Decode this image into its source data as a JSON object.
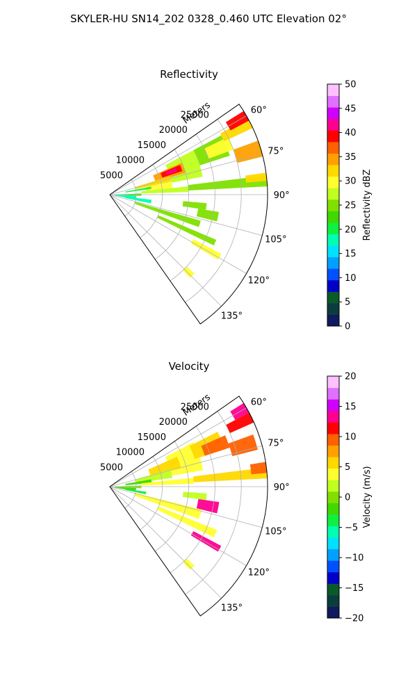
{
  "figure": {
    "title": "SKYLER-HU  SN14_202  0328_0.460 UTC Elevation 02°"
  },
  "chart_data": [
    {
      "type": "heatmap",
      "projection": "polar-sector",
      "title": "Reflectivity",
      "radial_label": "Meters",
      "radial_ticks": [
        "5000",
        "10000",
        "15000",
        "20000",
        "25000"
      ],
      "radial_tick_values": [
        5000,
        10000,
        15000,
        20000,
        25000
      ],
      "rmax": 30000,
      "angle_range": [
        55,
        145
      ],
      "angle_ticks": [
        "60°",
        "75°",
        "90°",
        "105°",
        "120°",
        "135°"
      ],
      "angle_tick_values": [
        60,
        75,
        90,
        105,
        120,
        135
      ],
      "grid": true,
      "colorbar": {
        "label": "Reflectivity dBZ",
        "range": [
          0,
          50
        ],
        "ticks": [
          "0",
          "5",
          "10",
          "15",
          "20",
          "25",
          "30",
          "35",
          "40",
          "45",
          "50"
        ],
        "tick_values": [
          0,
          5,
          10,
          15,
          20,
          25,
          30,
          35,
          40,
          45,
          50
        ],
        "colors": [
          "#101a5e",
          "#0b3d3d",
          "#0a5a2a",
          "#0000c8",
          "#0050ff",
          "#00a0ff",
          "#00e0ff",
          "#00ffb0",
          "#10f040",
          "#40d800",
          "#80e000",
          "#c0ff20",
          "#ffff30",
          "#ffd800",
          "#ffa000",
          "#ff6000",
          "#ff0000",
          "#ff0090",
          "#d000ff",
          "#e070ff",
          "#ffc0ff"
        ]
      }
    },
    {
      "type": "heatmap",
      "projection": "polar-sector",
      "title": "Velocity",
      "radial_label": "Meters",
      "radial_ticks": [
        "5000",
        "10000",
        "15000",
        "20000",
        "25000"
      ],
      "radial_tick_values": [
        5000,
        10000,
        15000,
        20000,
        25000
      ],
      "rmax": 30000,
      "angle_range": [
        55,
        145
      ],
      "angle_ticks": [
        "60°",
        "75°",
        "90°",
        "105°",
        "120°",
        "135°"
      ],
      "angle_tick_values": [
        60,
        75,
        90,
        105,
        120,
        135
      ],
      "grid": true,
      "colorbar": {
        "label": "Velocity (m/s)",
        "range": [
          -20,
          20
        ],
        "ticks": [
          "−20",
          "−15",
          "−10",
          "−5",
          "0",
          "5",
          "10",
          "15",
          "20"
        ],
        "tick_values": [
          -20,
          -15,
          -10,
          -5,
          0,
          5,
          10,
          15,
          20
        ],
        "colors": [
          "#101a5e",
          "#0b3d3d",
          "#0a5a2a",
          "#0000c8",
          "#0050ff",
          "#00a0ff",
          "#00e0ff",
          "#00ffb0",
          "#10f040",
          "#40d800",
          "#80e000",
          "#c0ff20",
          "#ffff30",
          "#ffd800",
          "#ffa000",
          "#ff6000",
          "#ff0000",
          "#ff0090",
          "#d000ff",
          "#e070ff",
          "#ffc0ff"
        ]
      }
    }
  ]
}
